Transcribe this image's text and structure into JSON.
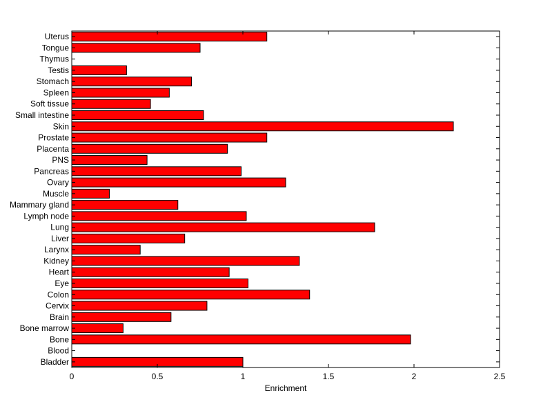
{
  "chart_data": {
    "type": "bar",
    "orientation": "horizontal",
    "xlabel": "Enrichment",
    "ylabel": "",
    "xlim": [
      0,
      2.5
    ],
    "xticks": [
      "0",
      "0.5",
      "1",
      "1.5",
      "2",
      "2.5"
    ],
    "grid": false,
    "bar_color": "#ff0000",
    "bar_edge_color": "#000000",
    "categories": [
      "Bladder",
      "Blood",
      "Bone",
      "Bone marrow",
      "Brain",
      "Cervix",
      "Colon",
      "Eye",
      "Heart",
      "Kidney",
      "Larynx",
      "Liver",
      "Lung",
      "Lymph node",
      "Mammary gland",
      "Muscle",
      "Ovary",
      "Pancreas",
      "PNS",
      "Placenta",
      "Prostate",
      "Skin",
      "Small intestine",
      "Soft tissue",
      "Spleen",
      "Stomach",
      "Testis",
      "Thymus",
      "Tongue",
      "Uterus"
    ],
    "values": [
      1.0,
      0,
      1.98,
      0.3,
      0.58,
      0.79,
      1.39,
      1.03,
      0.92,
      1.33,
      0.4,
      0.66,
      1.77,
      1.02,
      0.62,
      0.22,
      1.25,
      0.99,
      0.44,
      0.91,
      1.14,
      2.23,
      0.77,
      0.46,
      0.57,
      0.7,
      0.32,
      0,
      0.75,
      1.14
    ]
  }
}
